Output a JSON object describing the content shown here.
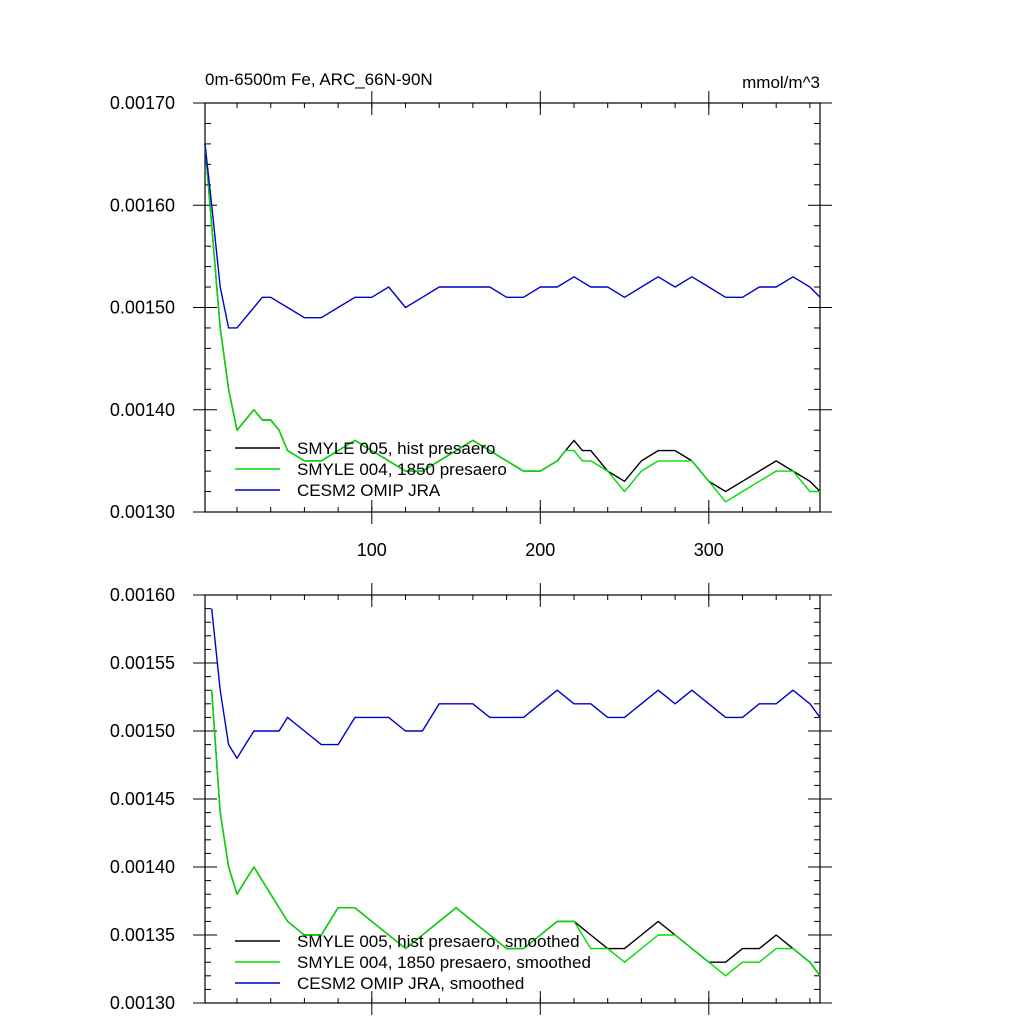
{
  "chart_data": [
    {
      "type": "line",
      "title": "0m-6500m Fe, ARC_66N-90N",
      "units": "mmol/m^3",
      "xlim": [
        1,
        366
      ],
      "ylim": [
        0.0013,
        0.0017
      ],
      "x_ticks": [
        100,
        200,
        300
      ],
      "x_tick_labels": [
        "100",
        "200",
        "300"
      ],
      "y_ticks": [
        0.0013,
        0.0014,
        0.0015,
        0.0016,
        0.0017
      ],
      "y_tick_labels": [
        "0.00130",
        "0.00140",
        "0.00150",
        "0.00160",
        "0.00170"
      ],
      "grid": false,
      "legend_position": "bottom-left",
      "series": [
        {
          "name": "SMYLE 005, hist presaero",
          "color": "#000000",
          "x": [
            1,
            5,
            10,
            15,
            20,
            25,
            30,
            35,
            40,
            45,
            50,
            60,
            70,
            80,
            90,
            100,
            110,
            120,
            130,
            140,
            150,
            160,
            170,
            180,
            190,
            200,
            210,
            215,
            220,
            225,
            230,
            240,
            250,
            260,
            270,
            280,
            290,
            300,
            310,
            320,
            330,
            340,
            350,
            360,
            366
          ],
          "y": [
            0.00166,
            0.00158,
            0.00148,
            0.00142,
            0.00138,
            0.00139,
            0.0014,
            0.00139,
            0.00139,
            0.00138,
            0.00136,
            0.00135,
            0.00135,
            0.00136,
            0.00137,
            0.00136,
            0.00135,
            0.00134,
            0.00134,
            0.00135,
            0.00136,
            0.00137,
            0.00136,
            0.00135,
            0.00134,
            0.00134,
            0.00135,
            0.00136,
            0.00137,
            0.00136,
            0.00136,
            0.00134,
            0.00133,
            0.00135,
            0.00136,
            0.00136,
            0.00135,
            0.00133,
            0.00132,
            0.00133,
            0.00134,
            0.00135,
            0.00134,
            0.00133,
            0.00132
          ]
        },
        {
          "name": "SMYLE 004, 1850 presaero",
          "color": "#00dd00",
          "x": [
            1,
            5,
            10,
            15,
            20,
            25,
            30,
            35,
            40,
            45,
            50,
            60,
            70,
            80,
            90,
            100,
            110,
            120,
            130,
            140,
            150,
            160,
            170,
            180,
            190,
            200,
            210,
            215,
            220,
            225,
            230,
            240,
            250,
            260,
            270,
            280,
            290,
            300,
            310,
            320,
            330,
            340,
            350,
            360,
            366
          ],
          "y": [
            0.00166,
            0.00158,
            0.00148,
            0.00142,
            0.00138,
            0.00139,
            0.0014,
            0.00139,
            0.00139,
            0.00138,
            0.00136,
            0.00135,
            0.00135,
            0.00136,
            0.00137,
            0.00136,
            0.00135,
            0.00134,
            0.00134,
            0.00135,
            0.00136,
            0.00137,
            0.00136,
            0.00135,
            0.00134,
            0.00134,
            0.00135,
            0.00136,
            0.00136,
            0.00135,
            0.00135,
            0.00134,
            0.00132,
            0.00134,
            0.00135,
            0.00135,
            0.00135,
            0.00133,
            0.00131,
            0.00132,
            0.00133,
            0.00134,
            0.00134,
            0.00132,
            0.00132
          ]
        },
        {
          "name": "CESM2 OMIP JRA",
          "color": "#0000cc",
          "x": [
            1,
            5,
            10,
            15,
            20,
            25,
            30,
            35,
            40,
            50,
            60,
            70,
            80,
            90,
            100,
            110,
            120,
            130,
            140,
            150,
            160,
            170,
            180,
            190,
            200,
            210,
            220,
            230,
            240,
            250,
            260,
            270,
            280,
            290,
            300,
            310,
            320,
            330,
            340,
            350,
            360,
            366
          ],
          "y": [
            0.00166,
            0.0016,
            0.00152,
            0.00148,
            0.00148,
            0.00149,
            0.0015,
            0.00151,
            0.00151,
            0.0015,
            0.00149,
            0.00149,
            0.0015,
            0.00151,
            0.00151,
            0.00152,
            0.0015,
            0.00151,
            0.00152,
            0.00152,
            0.00152,
            0.00152,
            0.00151,
            0.00151,
            0.00152,
            0.00152,
            0.00153,
            0.00152,
            0.00152,
            0.00151,
            0.00152,
            0.00153,
            0.00152,
            0.00153,
            0.00152,
            0.00151,
            0.00151,
            0.00152,
            0.00152,
            0.00153,
            0.00152,
            0.00151
          ]
        }
      ]
    },
    {
      "type": "line",
      "xlim": [
        1,
        366
      ],
      "ylim": [
        0.0013,
        0.0016
      ],
      "x_ticks": [
        100,
        200,
        300
      ],
      "y_ticks": [
        0.0013,
        0.00135,
        0.0014,
        0.00145,
        0.0015,
        0.00155,
        0.0016
      ],
      "y_tick_labels": [
        "0.00130",
        "0.00135",
        "0.00140",
        "0.00145",
        "0.00150",
        "0.00155",
        "0.00160"
      ],
      "grid": false,
      "legend_position": "bottom-left",
      "series": [
        {
          "name": "SMYLE 005, hist presaero, smoothed",
          "color": "#000000",
          "x": [
            5,
            10,
            15,
            20,
            25,
            30,
            35,
            40,
            45,
            50,
            60,
            70,
            80,
            90,
            100,
            110,
            120,
            130,
            140,
            150,
            160,
            170,
            180,
            190,
            200,
            210,
            220,
            230,
            240,
            250,
            260,
            270,
            280,
            290,
            300,
            310,
            320,
            330,
            340,
            350,
            360,
            366
          ],
          "y": [
            0.00153,
            0.00144,
            0.0014,
            0.00138,
            0.00139,
            0.0014,
            0.00139,
            0.00138,
            0.00137,
            0.00136,
            0.00135,
            0.00135,
            0.00137,
            0.00137,
            0.00136,
            0.00135,
            0.00134,
            0.00135,
            0.00136,
            0.00137,
            0.00136,
            0.00135,
            0.00134,
            0.00134,
            0.00135,
            0.00136,
            0.00136,
            0.00135,
            0.00134,
            0.00134,
            0.00135,
            0.00136,
            0.00135,
            0.00134,
            0.00133,
            0.00133,
            0.00134,
            0.00134,
            0.00135,
            0.00134,
            0.00133,
            0.00132
          ]
        },
        {
          "name": "SMYLE 004, 1850 presaero, smoothed",
          "color": "#00dd00",
          "x": [
            5,
            10,
            15,
            20,
            25,
            30,
            35,
            40,
            45,
            50,
            60,
            70,
            80,
            90,
            100,
            110,
            120,
            130,
            140,
            150,
            160,
            170,
            180,
            190,
            200,
            210,
            220,
            230,
            240,
            250,
            260,
            270,
            280,
            290,
            300,
            310,
            320,
            330,
            340,
            350,
            360,
            366
          ],
          "y": [
            0.00153,
            0.00144,
            0.0014,
            0.00138,
            0.00139,
            0.0014,
            0.00139,
            0.00138,
            0.00137,
            0.00136,
            0.00135,
            0.00135,
            0.00137,
            0.00137,
            0.00136,
            0.00135,
            0.00134,
            0.00135,
            0.00136,
            0.00137,
            0.00136,
            0.00135,
            0.00134,
            0.00134,
            0.00135,
            0.00136,
            0.00136,
            0.00134,
            0.00134,
            0.00133,
            0.00134,
            0.00135,
            0.00135,
            0.00134,
            0.00133,
            0.00132,
            0.00133,
            0.00133,
            0.00134,
            0.00134,
            0.00133,
            0.00132
          ]
        },
        {
          "name": "CESM2 OMIP JRA, smoothed",
          "color": "#0000cc",
          "x": [
            5,
            10,
            15,
            20,
            25,
            30,
            35,
            40,
            45,
            50,
            60,
            70,
            80,
            90,
            100,
            110,
            120,
            130,
            140,
            150,
            160,
            170,
            180,
            190,
            200,
            210,
            220,
            230,
            240,
            250,
            260,
            270,
            280,
            290,
            300,
            310,
            320,
            330,
            340,
            350,
            360,
            366
          ],
          "y": [
            0.00159,
            0.00153,
            0.00149,
            0.00148,
            0.00149,
            0.0015,
            0.0015,
            0.0015,
            0.0015,
            0.00151,
            0.0015,
            0.00149,
            0.00149,
            0.00151,
            0.00151,
            0.00151,
            0.0015,
            0.0015,
            0.00152,
            0.00152,
            0.00152,
            0.00151,
            0.00151,
            0.00151,
            0.00152,
            0.00153,
            0.00152,
            0.00152,
            0.00151,
            0.00151,
            0.00152,
            0.00153,
            0.00152,
            0.00153,
            0.00152,
            0.00151,
            0.00151,
            0.00152,
            0.00152,
            0.00153,
            0.00152,
            0.00151
          ]
        }
      ]
    }
  ]
}
